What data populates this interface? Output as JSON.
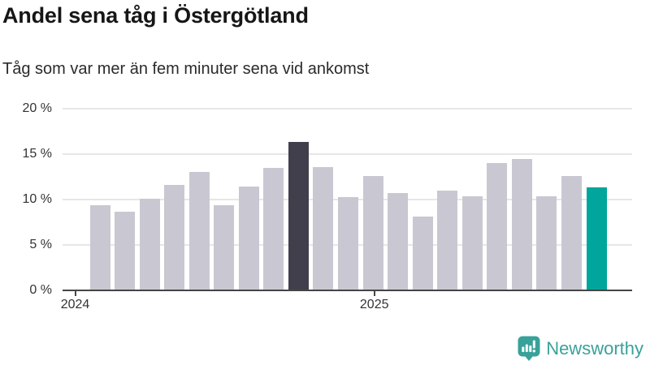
{
  "header": {
    "title": "Andel sena tåg i Östergötland",
    "subtitle": "Tåg som var mer än fem minuter sena vid ankomst"
  },
  "chart_data": {
    "type": "bar",
    "title": "Andel sena tåg i Östergötland",
    "subtitle": "Tåg som var mer än fem minuter sena vid ankomst",
    "unit": "percent share of trains more than five minutes late at arrival",
    "x": [
      "2024-02",
      "2024-03",
      "2024-04",
      "2024-05",
      "2024-06",
      "2024-07",
      "2024-08",
      "2024-09",
      "2024-10",
      "2024-11",
      "2024-12",
      "2025-01",
      "2025-02",
      "2025-03",
      "2025-04",
      "2025-05",
      "2025-06",
      "2025-07",
      "2025-08",
      "2025-09",
      "2025-10"
    ],
    "values": [
      9.4,
      8.7,
      10.1,
      11.6,
      13.0,
      9.4,
      11.4,
      13.5,
      16.3,
      13.6,
      10.3,
      12.6,
      10.7,
      8.1,
      11.0,
      10.4,
      14.0,
      14.5,
      10.4,
      12.6,
      11.3
    ],
    "ylim": [
      0,
      20
    ],
    "y_ticks": [
      0,
      5,
      10,
      15,
      20
    ],
    "y_tick_labels": [
      "0 %",
      "5 %",
      "10 %",
      "15 %",
      "20 %"
    ],
    "x_tick_labels": [
      "2024",
      "2025"
    ],
    "grid": true,
    "legend": false,
    "highlight": {
      "dark_index": 8,
      "dark_month": "2024-10",
      "teal_index": 20,
      "teal_month": "2025-10"
    },
    "colors": {
      "bar_default": "#c9c8d2",
      "bar_dark": "#413f4c",
      "bar_teal": "#00a69b",
      "gridline": "#e7e7e7",
      "axis": "#454545"
    }
  },
  "branding": {
    "logo_text": "Newsworthy",
    "logo_color": "#38a29a"
  }
}
